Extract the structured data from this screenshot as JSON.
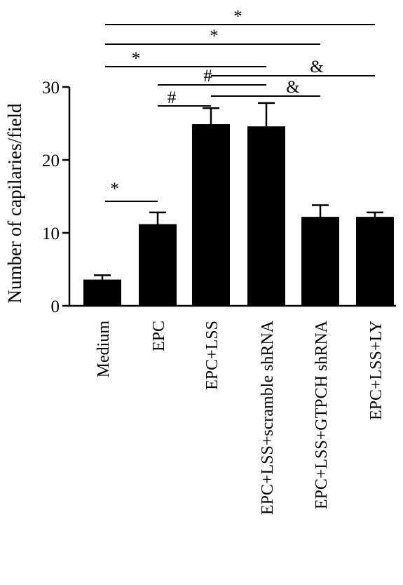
{
  "chart_data": {
    "type": "bar",
    "ylabel": "Number of capilaries/field",
    "xlabel": "",
    "title": "",
    "ylim": [
      0,
      30
    ],
    "yticks": [
      "0",
      "10",
      "20",
      "30"
    ],
    "categories": [
      "Medium",
      "EPC",
      "EPC+LSS",
      "EPC+LSS+scramble shRNA",
      "EPC+LSS+GTPCH shRNA",
      "EPC+LSS+LY"
    ],
    "values": [
      3.6,
      11.2,
      24.9,
      24.6,
      12.2,
      12.2
    ],
    "errors": [
      0.6,
      1.6,
      2.2,
      3.2,
      1.6,
      0.6
    ],
    "bar_color": "#000000",
    "significance": [
      {
        "from": 0,
        "to": 1,
        "label": "*"
      },
      {
        "from": 1,
        "to": 2,
        "label": "#"
      },
      {
        "from": 0,
        "to": 3,
        "label": "*"
      },
      {
        "from": 2,
        "to": 4,
        "label": "&"
      },
      {
        "from": 0,
        "to": 4,
        "label": "*"
      },
      {
        "from": 0,
        "to": 5,
        "label": "*"
      },
      {
        "from": 1,
        "to": 3,
        "label": "#"
      },
      {
        "from": 2,
        "to": 5,
        "label": "&"
      }
    ]
  }
}
